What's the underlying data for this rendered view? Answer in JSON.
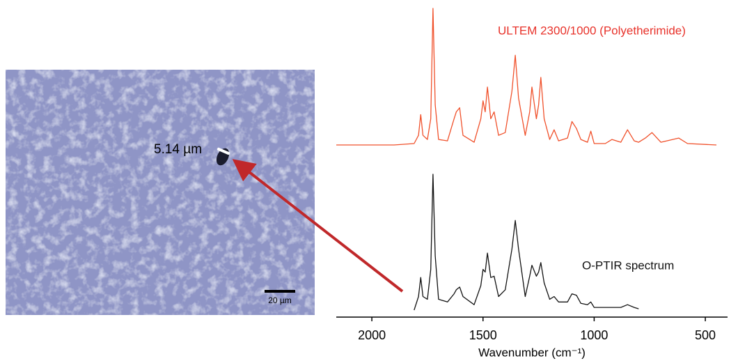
{
  "chart_data": {
    "type": "line",
    "xlabel": "Wavenumber (cm⁻¹)",
    "xlim": [
      2160,
      400
    ],
    "xticks": [
      2000,
      1500,
      1000,
      500
    ],
    "ylim": [
      0,
      1
    ],
    "x": [
      2160,
      1900,
      1810,
      1790,
      1780,
      1770,
      1750,
      1735,
      1725,
      1715,
      1700,
      1660,
      1630,
      1620,
      1605,
      1590,
      1540,
      1510,
      1500,
      1490,
      1480,
      1465,
      1450,
      1430,
      1400,
      1370,
      1355,
      1340,
      1310,
      1290,
      1280,
      1260,
      1250,
      1240,
      1225,
      1200,
      1180,
      1160,
      1120,
      1100,
      1080,
      1060,
      1030,
      1015,
      1000,
      950,
      920,
      880,
      850,
      820,
      800,
      770,
      740,
      700,
      620,
      580,
      450
    ],
    "series": [
      {
        "name": "ULTEM 2300/1000 (Polyetherimide)",
        "color": "#f0502a",
        "values": [
          0.01,
          0.01,
          0.02,
          0.08,
          0.23,
          0.08,
          0.05,
          0.2,
          1.0,
          0.3,
          0.05,
          0.04,
          0.2,
          0.25,
          0.28,
          0.08,
          0.03,
          0.2,
          0.33,
          0.25,
          0.43,
          0.2,
          0.25,
          0.08,
          0.1,
          0.4,
          0.66,
          0.35,
          0.08,
          0.25,
          0.43,
          0.2,
          0.3,
          0.5,
          0.2,
          0.05,
          0.12,
          0.04,
          0.06,
          0.18,
          0.13,
          0.05,
          0.03,
          0.11,
          0.02,
          0.02,
          0.05,
          0.03,
          0.12,
          0.04,
          0.03,
          0.06,
          0.1,
          0.03,
          0.06,
          0.02,
          0.01
        ]
      },
      {
        "name": "O-PTIR spectrum",
        "color": "#111111",
        "values": [
          null,
          null,
          0.0,
          0.1,
          0.24,
          0.1,
          0.08,
          0.3,
          1.0,
          0.4,
          0.08,
          0.06,
          0.12,
          0.15,
          0.17,
          0.1,
          0.04,
          0.18,
          0.3,
          0.28,
          0.42,
          0.24,
          0.25,
          0.1,
          0.15,
          0.45,
          0.66,
          0.45,
          0.1,
          0.25,
          0.33,
          0.25,
          0.28,
          0.35,
          0.2,
          0.08,
          0.1,
          0.06,
          0.06,
          0.12,
          0.11,
          0.05,
          0.04,
          0.06,
          0.02,
          0.02,
          0.02,
          0.02,
          0.04,
          0.02,
          0.01,
          null,
          null,
          null,
          null,
          null,
          null
        ]
      }
    ]
  },
  "image": {
    "measurement": "5.14 µm",
    "scale_bar": "20 µm"
  }
}
